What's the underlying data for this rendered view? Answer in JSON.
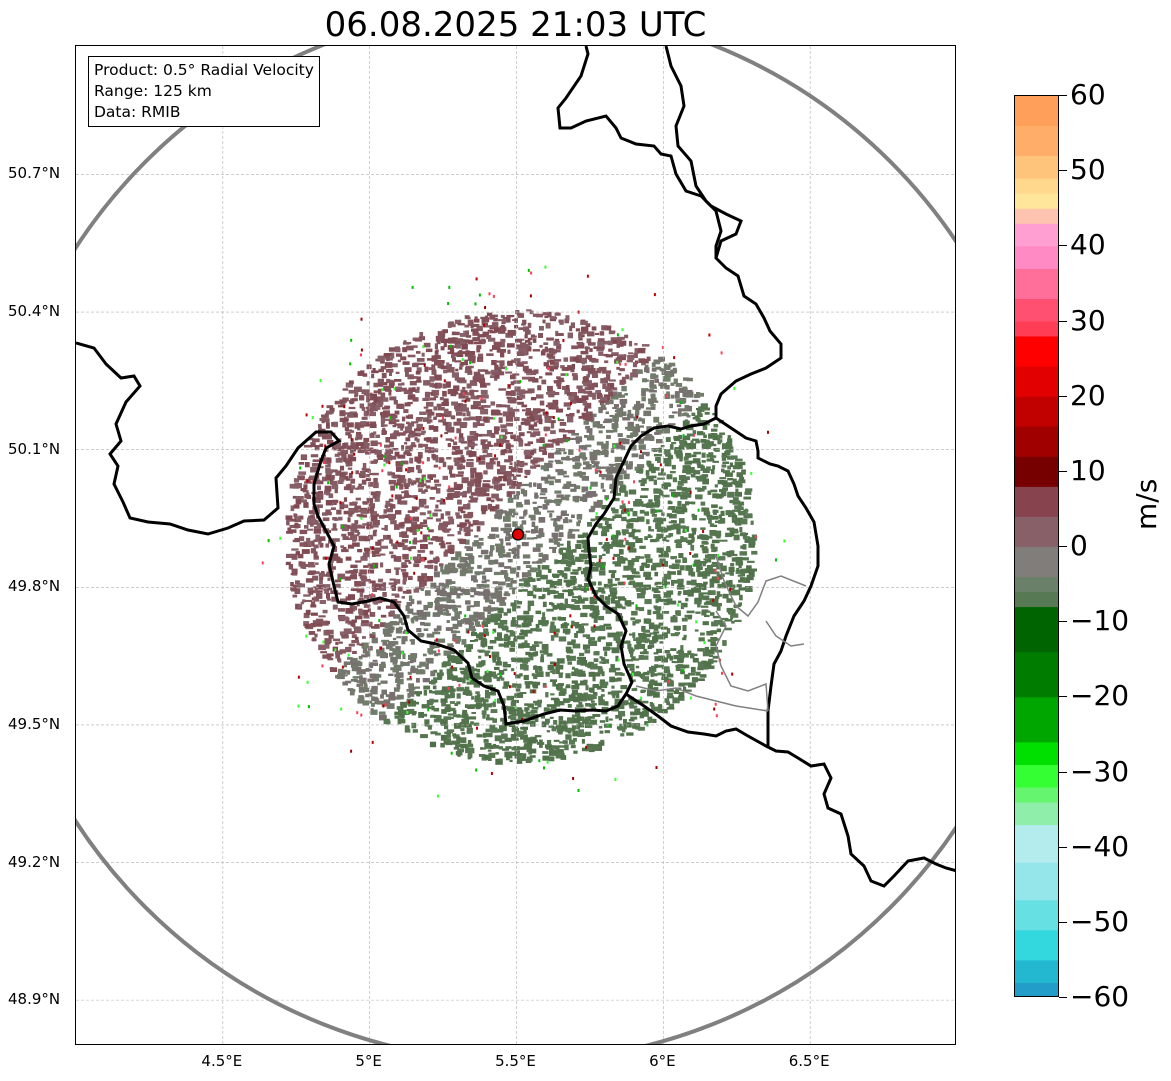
{
  "title": "06.08.2025 21:03 UTC",
  "info_box": {
    "product": "Product: 0.5° Radial Velocity",
    "range": "Range: 125 km",
    "source": "Data: RMIB"
  },
  "map": {
    "lon_range": [
      4.0,
      7.0
    ],
    "lat_range": [
      48.8,
      50.98
    ],
    "lat_ticks": [
      {
        "value": 50.7,
        "label": "50.7°N"
      },
      {
        "value": 50.4,
        "label": "50.4°N"
      },
      {
        "value": 50.1,
        "label": "50.1°N"
      },
      {
        "value": 49.8,
        "label": "49.8°N"
      },
      {
        "value": 49.5,
        "label": "49.5°N"
      },
      {
        "value": 49.2,
        "label": "49.2°N"
      },
      {
        "value": 48.9,
        "label": "48.9°N"
      }
    ],
    "lon_ticks": [
      {
        "value": 4.5,
        "label": "4.5°E"
      },
      {
        "value": 5.0,
        "label": "5°E"
      },
      {
        "value": 5.5,
        "label": "5.5°E"
      },
      {
        "value": 6.0,
        "label": "6°E"
      },
      {
        "value": 6.5,
        "label": "6.5°E"
      }
    ],
    "radar_site": {
      "lon": 5.505,
      "lat": 49.915
    },
    "range_ring_color": "#808080",
    "border_color": "#000000",
    "subregion_border_color": "#808080"
  },
  "colorbar": {
    "unit": "m/s",
    "min": -60,
    "max": 60,
    "ticks": [
      {
        "value": 60,
        "label": "60"
      },
      {
        "value": 50,
        "label": "50"
      },
      {
        "value": 40,
        "label": "40"
      },
      {
        "value": 30,
        "label": "30"
      },
      {
        "value": 20,
        "label": "20"
      },
      {
        "value": 10,
        "label": "10"
      },
      {
        "value": 0,
        "label": "0"
      },
      {
        "value": -10,
        "label": "−10"
      },
      {
        "value": -20,
        "label": "−20"
      },
      {
        "value": -30,
        "label": "−30"
      },
      {
        "value": -40,
        "label": "−40"
      },
      {
        "value": -50,
        "label": "−50"
      },
      {
        "value": -60,
        "label": "−60"
      }
    ],
    "stops": [
      {
        "v": 60,
        "c": "#ff9f5a"
      },
      {
        "v": 56,
        "c": "#ffad69"
      },
      {
        "v": 52,
        "c": "#ffc47c"
      },
      {
        "v": 49,
        "c": "#ffd88e"
      },
      {
        "v": 47,
        "c": "#ffe69a"
      },
      {
        "v": 45,
        "c": "#ffc4b0"
      },
      {
        "v": 43,
        "c": "#ff9fd2"
      },
      {
        "v": 40,
        "c": "#ff8ac4"
      },
      {
        "v": 37,
        "c": "#ff6f9a"
      },
      {
        "v": 33,
        "c": "#ff5071"
      },
      {
        "v": 30,
        "c": "#ff3d55"
      },
      {
        "v": 28,
        "c": "#ff0000"
      },
      {
        "v": 24,
        "c": "#e20000"
      },
      {
        "v": 20,
        "c": "#c10000"
      },
      {
        "v": 16,
        "c": "#a00000"
      },
      {
        "v": 12,
        "c": "#760000"
      },
      {
        "v": 8,
        "c": "#87444f"
      },
      {
        "v": 4,
        "c": "#876068"
      },
      {
        "v": 0,
        "c": "#807d7a"
      },
      {
        "v": -4,
        "c": "#6a8068"
      },
      {
        "v": -6,
        "c": "#577a55"
      },
      {
        "v": -8,
        "c": "#006400"
      },
      {
        "v": -14,
        "c": "#007c00"
      },
      {
        "v": -20,
        "c": "#00a600"
      },
      {
        "v": -26,
        "c": "#00e000"
      },
      {
        "v": -29,
        "c": "#33ff33"
      },
      {
        "v": -32,
        "c": "#66f56f"
      },
      {
        "v": -34,
        "c": "#8eeeaa"
      },
      {
        "v": -37,
        "c": "#b4ecee"
      },
      {
        "v": -42,
        "c": "#94e6ea"
      },
      {
        "v": -47,
        "c": "#66e0e3"
      },
      {
        "v": -51,
        "c": "#33d8df"
      },
      {
        "v": -55,
        "c": "#23b8cf"
      },
      {
        "v": -58,
        "c": "#229cc8"
      },
      {
        "v": -60,
        "c": "#1e78c0"
      }
    ]
  }
}
